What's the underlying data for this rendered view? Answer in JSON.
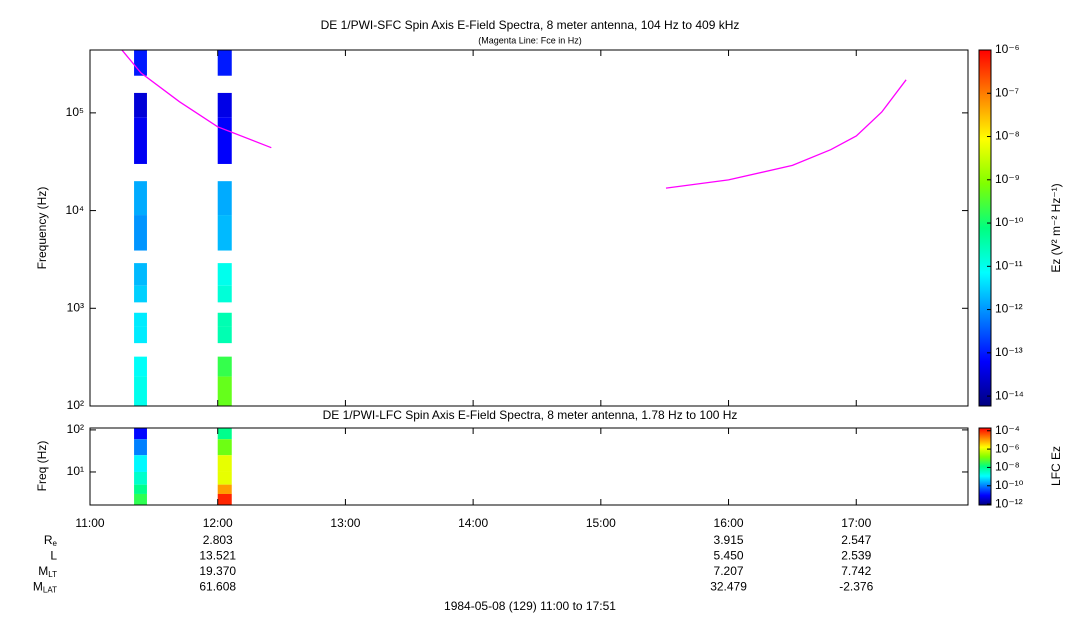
{
  "time_axis": {
    "lim": [
      11,
      17.875
    ],
    "ticks": [
      {
        "value": 11,
        "label": "11:00"
      },
      {
        "value": 12,
        "label": "12:00"
      },
      {
        "value": 13,
        "label": "13:00"
      },
      {
        "value": 14,
        "label": "14:00"
      },
      {
        "value": 15,
        "label": "15:00"
      },
      {
        "value": 16,
        "label": "16:00"
      },
      {
        "value": 17,
        "label": "17:00"
      }
    ]
  },
  "colormap": [
    "#000080",
    "#0000ff",
    "#0080ff",
    "#00ffff",
    "#00ff80",
    "#80ff00",
    "#ffff00",
    "#ff8000",
    "#ff0000"
  ],
  "chart_data": [
    {
      "type": "spectrogram",
      "title": "DE 1/PWI-SFC  Spin Axis E-Field Spectra, 8 meter antenna, 104 Hz to 409 kHz",
      "subtitle": "(Magenta Line: Fce in Hz)",
      "ylabel": "Frequency (Hz)",
      "ylog": true,
      "ylim": [
        100,
        440000
      ],
      "yticks": [
        {
          "value": 100,
          "label": "10²"
        },
        {
          "value": 1000,
          "label": "10³"
        },
        {
          "value": 10000,
          "label": "10⁴"
        },
        {
          "value": 100000,
          "label": "10⁵"
        }
      ],
      "bins": [
        [
          240000,
          440000
        ],
        [
          90000,
          160000
        ],
        [
          30000,
          90000
        ],
        [
          9000,
          20000
        ],
        [
          3900,
          9000
        ],
        [
          1700,
          2900
        ],
        [
          1150,
          1700
        ],
        [
          650,
          900
        ],
        [
          440,
          650
        ],
        [
          200,
          320
        ],
        [
          100,
          200
        ]
      ],
      "times": [
        [
          11.345,
          11.446
        ],
        [
          12.0,
          12.11
        ]
      ],
      "values": [
        [
          1e-13,
          3e-14,
          5e-14,
          1.5e-12,
          1e-12,
          2e-12,
          3e-12,
          5e-12,
          5e-12,
          8e-12,
          1e-11
        ],
        [
          1e-13,
          4e-14,
          6e-14,
          1.5e-12,
          2e-12,
          1e-11,
          1.5e-11,
          3e-11,
          3e-11,
          2e-10,
          5e-10
        ]
      ],
      "zlabel": "Ez (V² m⁻² Hz⁻¹)",
      "zlim": [
        5.9e-15,
        1e-06
      ],
      "zticks": [
        {
          "value": 1e-06,
          "label": "10⁻⁶"
        },
        {
          "value": 1e-07,
          "label": "10⁻⁷"
        },
        {
          "value": 1e-08,
          "label": "10⁻⁸"
        },
        {
          "value": 1e-09,
          "label": "10⁻⁹"
        },
        {
          "value": 1e-10,
          "label": "10⁻¹⁰"
        },
        {
          "value": 1e-11,
          "label": "10⁻¹¹"
        },
        {
          "value": 1e-12,
          "label": "10⁻¹²"
        },
        {
          "value": 1e-13,
          "label": "10⁻¹³"
        },
        {
          "value": 1e-14,
          "label": "10⁻¹⁴"
        }
      ],
      "series": [
        {
          "color": "#ff00ff",
          "x": [
            11.25,
            11.4,
            11.7,
            12.0,
            12.42,
            14.0,
            15.51,
            16.0,
            16.5,
            16.8,
            17.0,
            17.2,
            17.39
          ],
          "values": [
            440000,
            256000,
            130000,
            72000,
            44000,
            null,
            17000,
            20600,
            29000,
            42000,
            58000,
            102000,
            218000
          ]
        }
      ]
    },
    {
      "type": "spectrogram",
      "title": "DE 1/PWI-LFC  Spin Axis E-Field Spectra, 8 meter antenna, 1.78 Hz to 100 Hz",
      "ylabel": "Freq (Hz)",
      "ylog": true,
      "ylim": [
        1.64,
        111
      ],
      "yticks": [
        {
          "value": 10,
          "label": "10¹"
        },
        {
          "value": 100,
          "label": "10²"
        }
      ],
      "bins": [
        [
          60,
          111
        ],
        [
          25,
          60
        ],
        [
          10,
          25
        ],
        [
          5,
          10
        ],
        [
          3,
          5
        ],
        [
          1.64,
          3
        ]
      ],
      "times": [
        [
          11.345,
          11.446
        ],
        [
          12.0,
          12.11
        ]
      ],
      "values": [
        [
          1e-11,
          1e-10,
          1e-09,
          3e-09,
          1e-08,
          3e-08
        ],
        [
          1e-08,
          1e-07,
          1e-06,
          1e-06,
          1e-05,
          0.0001
        ]
      ],
      "zlabel": "LFC Ez",
      "zlim": [
        8e-13,
        0.0002
      ],
      "zticks": [
        {
          "value": 0.0001,
          "label": "10⁻⁴"
        },
        {
          "value": 1e-06,
          "label": "10⁻⁶"
        },
        {
          "value": 1e-08,
          "label": "10⁻⁸"
        },
        {
          "value": 1e-10,
          "label": "10⁻¹⁰"
        },
        {
          "value": 1e-12,
          "label": "10⁻¹²"
        }
      ]
    }
  ],
  "ephemeris": [
    {
      "label": "R",
      "sub": "e",
      "values": [
        null,
        "2.803",
        null,
        null,
        null,
        "3.915",
        "2.547"
      ]
    },
    {
      "label": "L",
      "values": [
        null,
        "13.521",
        null,
        null,
        null,
        "5.450",
        "2.539"
      ]
    },
    {
      "label": "M",
      "sub": "LT",
      "values": [
        null,
        "19.370",
        null,
        null,
        null,
        "7.207",
        "7.742"
      ]
    },
    {
      "label": "M",
      "sub": "LAT",
      "values": [
        null,
        "61.608",
        null,
        null,
        null,
        "32.479",
        "-2.376"
      ]
    }
  ],
  "footer": "1984-05-08 (129) 11:00 to 17:51"
}
